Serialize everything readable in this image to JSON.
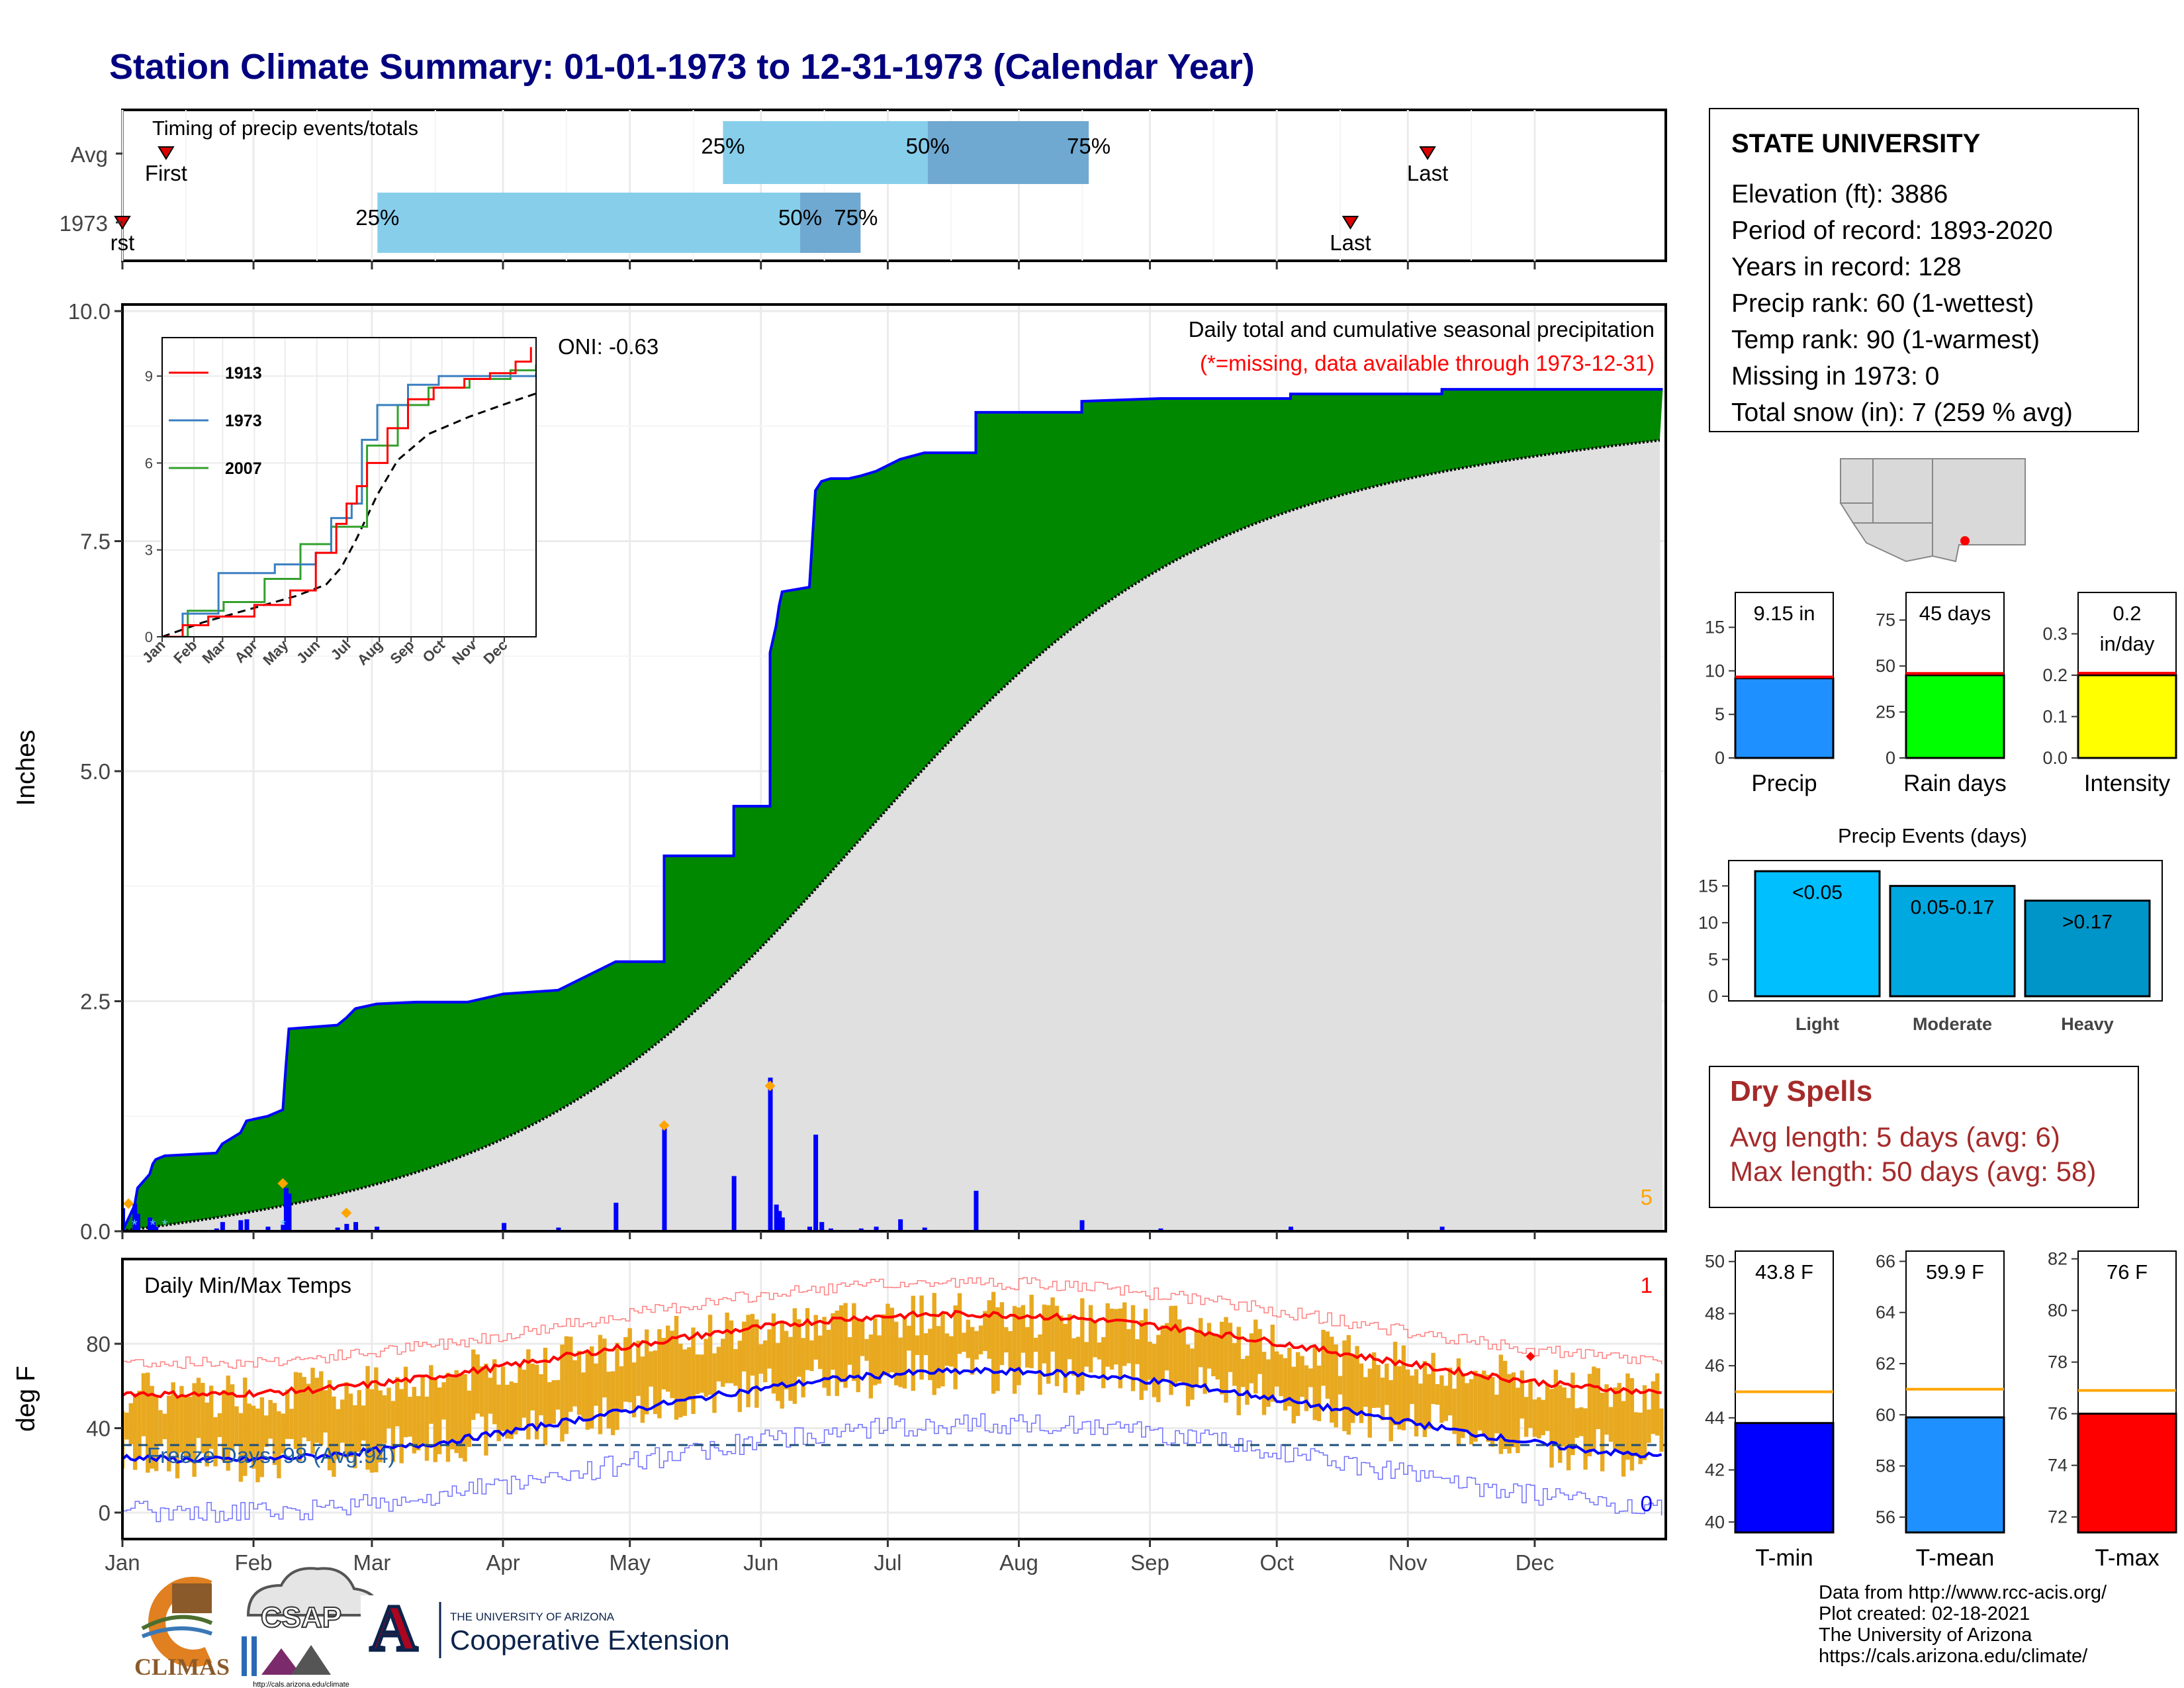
{
  "title": "Station Climate Summary: 01-01-1973 to 12-31-1973 (Calendar Year)",
  "station": {
    "name": "STATE UNIVERSITY",
    "lines": [
      "Elevation (ft): 3886",
      "Period of record: 1893-2020",
      "Years in record: 128",
      "Precip rank: 60 (1-wettest)",
      "Temp rank: 90 (1-warmest)",
      "Missing in 1973: 0",
      "Total snow (in): 7 (259 % avg)"
    ]
  },
  "dry_spells": {
    "title": "Dry Spells",
    "avg_length": "Avg length: 5 days (avg: 6)",
    "max_length": "Max length: 50 days (avg: 58)"
  },
  "footer": [
    "Data from http://www.rcc-acis.org/",
    "Plot created: 02-18-2021",
    "The University of Arizona",
    "https://cals.arizona.edu/climate/"
  ],
  "logos": {
    "climas": "CLIMAS",
    "csap": "CSAP",
    "csap_url": "http://cals.arizona.edu/climate",
    "ua_line1": "THE UNIVERSITY OF ARIZONA",
    "ua_line2": "Cooperative Extension",
    "ua_mark": "A"
  },
  "colors": {
    "title": "#000080",
    "green": "#008800",
    "gray": "#e0e0e0",
    "blue": "#0000ff",
    "precip_bar": "#1e90ff",
    "raindays_bar": "#00ff00",
    "intensity_bar": "#ffff00",
    "timing_light": "#87ceeb",
    "timing_dark": "#6fa8d0",
    "temp_bar": "#e8a920",
    "tmax": "#ff0000",
    "tmin": "#0000ff",
    "dry": "#a52a2a"
  },
  "chart_data": [
    {
      "type": "bar",
      "id": "timing",
      "title": "Timing of precip events/totals",
      "rows": [
        {
          "label": "Avg",
          "first_doy": 14,
          "last_doy": 390,
          "p25_doy": 180,
          "p50_doy": 241,
          "p75_doy": 289,
          "p25": "25%",
          "p50": "50%",
          "p75": "75%",
          "first": "First",
          "last": "Last"
        },
        {
          "label": "1973",
          "first_doy": 1,
          "last_doy": 367,
          "p25_doy": 77,
          "p50_doy": 203,
          "p75_doy": 221,
          "p25": "25%",
          "p50": "50%",
          "p75": "75%",
          "first": "rst",
          "last": "Last"
        }
      ]
    },
    {
      "type": "area",
      "id": "cumulative_precip",
      "ylabel": "Inches",
      "ylim": [
        0,
        10
      ],
      "yticks": [
        "0.0",
        "2.5",
        "5.0",
        "7.5",
        "10.0"
      ],
      "caption": "Daily total and cumulative seasonal precipitation",
      "missing_note": "(*=missing, data available through 1973-12-31)",
      "oni": "ONI: -0.63",
      "corner_count": "5",
      "cum_1973": [
        [
          1,
          0.0
        ],
        [
          5,
          0.28
        ],
        [
          6,
          0.47
        ],
        [
          10,
          0.62
        ],
        [
          11,
          0.73
        ],
        [
          12,
          0.78
        ],
        [
          15,
          0.82
        ],
        [
          32,
          0.85
        ],
        [
          34,
          0.95
        ],
        [
          40,
          1.07
        ],
        [
          42,
          1.2
        ],
        [
          49,
          1.25
        ],
        [
          54,
          1.32
        ],
        [
          55,
          1.79
        ],
        [
          56,
          2.2
        ],
        [
          56,
          2.2
        ],
        [
          72,
          2.24
        ],
        [
          75,
          2.32
        ],
        [
          78,
          2.42
        ],
        [
          85,
          2.47
        ],
        [
          98,
          2.49
        ],
        [
          115,
          2.49
        ],
        [
          127,
          2.58
        ],
        [
          145,
          2.62
        ],
        [
          164,
          2.93
        ],
        [
          180,
          2.93
        ],
        [
          180,
          4.08
        ],
        [
          203,
          4.08
        ],
        [
          203,
          4.62
        ],
        [
          215,
          4.62
        ],
        [
          215,
          6.29
        ],
        [
          217,
          6.58
        ],
        [
          218,
          6.8
        ],
        [
          219,
          6.95
        ],
        [
          228,
          7.0
        ],
        [
          230,
          8.05
        ],
        [
          232,
          8.15
        ],
        [
          235,
          8.18
        ],
        [
          241,
          8.18
        ],
        [
          245,
          8.21
        ],
        [
          250,
          8.26
        ],
        [
          258,
          8.39
        ],
        [
          266,
          8.46
        ],
        [
          283,
          8.46
        ],
        [
          283,
          8.9
        ],
        [
          318,
          8.9
        ],
        [
          318,
          9.02
        ],
        [
          344,
          9.05
        ],
        [
          387,
          9.05
        ],
        [
          387,
          9.1
        ],
        [
          437,
          9.1
        ],
        [
          437,
          9.15
        ],
        [
          510,
          9.15
        ]
      ],
      "avg_cum_end": 8.6,
      "daily_1973": [
        [
          1,
          0.25
        ],
        [
          5,
          0.3
        ],
        [
          6,
          0.19
        ],
        [
          10,
          0.15
        ],
        [
          11,
          0.11
        ],
        [
          12,
          0.05
        ],
        [
          32,
          0.03
        ],
        [
          34,
          0.1
        ],
        [
          40,
          0.12
        ],
        [
          42,
          0.13
        ],
        [
          49,
          0.05
        ],
        [
          54,
          0.07
        ],
        [
          55,
          0.47
        ],
        [
          56,
          0.41
        ],
        [
          72,
          0.04
        ],
        [
          75,
          0.08
        ],
        [
          78,
          0.1
        ],
        [
          85,
          0.05
        ],
        [
          127,
          0.09
        ],
        [
          145,
          0.04
        ],
        [
          164,
          0.31
        ],
        [
          180,
          1.15
        ],
        [
          203,
          0.6
        ],
        [
          215,
          1.67
        ],
        [
          217,
          0.29
        ],
        [
          218,
          0.22
        ],
        [
          219,
          0.15
        ],
        [
          228,
          0.05
        ],
        [
          230,
          1.05
        ],
        [
          232,
          0.1
        ],
        [
          235,
          0.03
        ],
        [
          245,
          0.03
        ],
        [
          250,
          0.05
        ],
        [
          258,
          0.13
        ],
        [
          266,
          0.04
        ],
        [
          283,
          0.44
        ],
        [
          318,
          0.12
        ],
        [
          344,
          0.03
        ],
        [
          387,
          0.05
        ],
        [
          437,
          0.05
        ]
      ],
      "maxima": [
        [
          3,
          0.3
        ],
        [
          54,
          0.52
        ],
        [
          75,
          0.2
        ],
        [
          180,
          1.15
        ],
        [
          215,
          1.58
        ]
      ]
    },
    {
      "type": "line",
      "id": "inset_cumulative",
      "yticks": [
        "0",
        "3",
        "6",
        "9"
      ],
      "xticks": [
        "Jan",
        "Feb",
        "Mar",
        "Apr",
        "May",
        "Jun",
        "Jul",
        "Aug",
        "Sep",
        "Oct",
        "Nov",
        "Dec"
      ],
      "series": [
        {
          "name": "1913",
          "color": "#ff0000"
        },
        {
          "name": "1973",
          "color": "#3a7fc0"
        },
        {
          "name": "2007",
          "color": "#33a02c"
        }
      ],
      "s1913": [
        [
          0,
          0
        ],
        [
          20,
          0.4
        ],
        [
          45,
          0.7
        ],
        [
          90,
          1.1
        ],
        [
          125,
          1.6
        ],
        [
          150,
          2.9
        ],
        [
          170,
          3.9
        ],
        [
          180,
          4.6
        ],
        [
          190,
          5.2
        ],
        [
          200,
          6.0
        ],
        [
          220,
          7.2
        ],
        [
          240,
          8.2
        ],
        [
          265,
          8.6
        ],
        [
          295,
          8.9
        ],
        [
          320,
          9.1
        ],
        [
          345,
          9.5
        ],
        [
          360,
          10.0
        ]
      ],
      "s1973": [
        [
          0,
          0
        ],
        [
          20,
          0.8
        ],
        [
          55,
          2.2
        ],
        [
          110,
          2.5
        ],
        [
          150,
          2.9
        ],
        [
          165,
          4.1
        ],
        [
          185,
          4.6
        ],
        [
          195,
          6.8
        ],
        [
          210,
          8.0
        ],
        [
          240,
          8.7
        ],
        [
          270,
          9.0
        ],
        [
          365,
          9.1
        ]
      ],
      "s2007": [
        [
          0,
          0
        ],
        [
          25,
          0.9
        ],
        [
          60,
          1.2
        ],
        [
          100,
          2.0
        ],
        [
          135,
          3.2
        ],
        [
          165,
          3.8
        ],
        [
          200,
          6.6
        ],
        [
          230,
          8.0
        ],
        [
          260,
          8.6
        ],
        [
          300,
          8.9
        ],
        [
          340,
          9.2
        ],
        [
          365,
          9.4
        ]
      ],
      "savg": [
        [
          0,
          0
        ],
        [
          40,
          0.5
        ],
        [
          90,
          1.0
        ],
        [
          130,
          1.4
        ],
        [
          160,
          1.8
        ],
        [
          175,
          2.4
        ],
        [
          190,
          3.4
        ],
        [
          210,
          4.9
        ],
        [
          230,
          6.1
        ],
        [
          260,
          7.0
        ],
        [
          300,
          7.6
        ],
        [
          340,
          8.1
        ],
        [
          365,
          8.4
        ]
      ]
    },
    {
      "type": "bar",
      "id": "temps",
      "title": "Daily Min/Max Temps",
      "ylabel": "deg F",
      "yticks": [
        "0",
        "40",
        "80"
      ],
      "freeze_label": "Freeze Days: 98 (Avg:94)",
      "freeze_line": 32,
      "record_max_count": "1",
      "record_min_count": "0",
      "months": [
        "Jan",
        "Feb",
        "Mar",
        "Apr",
        "May",
        "Jun",
        "Jul",
        "Aug",
        "Sep",
        "Oct",
        "Nov",
        "Dec"
      ]
    },
    {
      "type": "bar",
      "id": "precip_total",
      "categories": [
        "Precip"
      ],
      "values": [
        9.15
      ],
      "avg": 9.3,
      "label": "9.15 in",
      "ylim": [
        0,
        19
      ],
      "yticks": [
        "0",
        "5",
        "10",
        "15"
      ]
    },
    {
      "type": "bar",
      "id": "rain_days",
      "categories": [
        "Rain days"
      ],
      "values": [
        45
      ],
      "avg": 46,
      "label": "45 days",
      "ylim": [
        0,
        90
      ],
      "yticks": [
        "0",
        "25",
        "50",
        "75"
      ]
    },
    {
      "type": "bar",
      "id": "intensity",
      "categories": [
        "Intensity"
      ],
      "values": [
        0.2
      ],
      "avg": 0.205,
      "label": "0.2",
      "label2": "in/day",
      "ylim": [
        0,
        0.4
      ],
      "yticks": [
        "0.0",
        "0.1",
        "0.2",
        "0.3"
      ]
    },
    {
      "type": "bar",
      "id": "precip_events",
      "title": "Precip Events (days)",
      "categories": [
        "Light",
        "Moderate",
        "Heavy"
      ],
      "bar_labels": [
        "<0.05",
        "0.05-0.17",
        ">0.17"
      ],
      "values": [
        17,
        15,
        13
      ],
      "ylim": [
        0,
        18
      ],
      "yticks": [
        "0",
        "5",
        "10",
        "15"
      ]
    },
    {
      "type": "bar",
      "id": "tmin",
      "categories": [
        "T-min"
      ],
      "values": [
        43.8
      ],
      "avg": 45.0,
      "label": "43.8 F",
      "ylim": [
        39.6,
        50.4
      ],
      "yticks": [
        "40",
        "42",
        "44",
        "46",
        "48",
        "50"
      ]
    },
    {
      "type": "bar",
      "id": "tmean",
      "categories": [
        "T-mean"
      ],
      "values": [
        59.9
      ],
      "avg": 61.0,
      "label": "59.9 F",
      "ylim": [
        55.4,
        66.4
      ],
      "yticks": [
        "56",
        "58",
        "60",
        "62",
        "64",
        "66"
      ]
    },
    {
      "type": "bar",
      "id": "tmax",
      "categories": [
        "T-max"
      ],
      "values": [
        76
      ],
      "avg": 76.9,
      "label": "76 F",
      "ylim": [
        71.4,
        82.3
      ],
      "yticks": [
        "72",
        "74",
        "76",
        "78",
        "80",
        "82"
      ]
    }
  ]
}
